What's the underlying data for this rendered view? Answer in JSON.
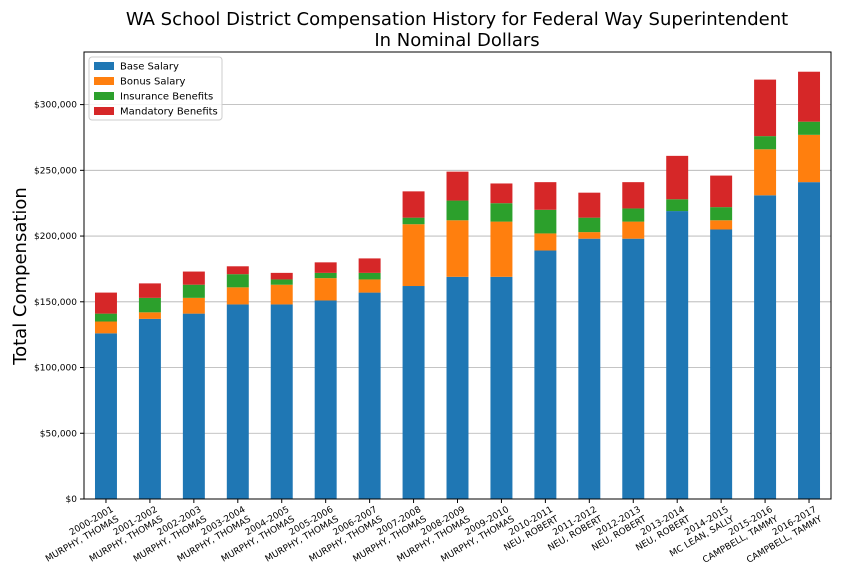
{
  "chart_data": {
    "type": "bar",
    "stacked": true,
    "title": "WA School District Compensation History for Federal Way Superintendent",
    "subtitle": "In Nominal Dollars",
    "xlabel": "",
    "ylabel": "Total Compensation",
    "ylim": [
      0,
      340000
    ],
    "yticks": [
      0,
      50000,
      100000,
      150000,
      200000,
      250000,
      300000
    ],
    "ytick_labels": [
      "$0",
      "$50,000",
      "$100,000",
      "$150,000",
      "$200,000",
      "$250,000",
      "$300,000"
    ],
    "grid": "horizontal",
    "legend_position": "top-left",
    "categories": [
      [
        "2000-2001",
        "MURPHY, THOMAS"
      ],
      [
        "2001-2002",
        "MURPHY, THOMAS"
      ],
      [
        "2002-2003",
        "MURPHY, THOMAS"
      ],
      [
        "2003-2004",
        "MURPHY, THOMAS"
      ],
      [
        "2004-2005",
        "MURPHY, THOMAS"
      ],
      [
        "2005-2006",
        "MURPHY, THOMAS"
      ],
      [
        "2006-2007",
        "MURPHY, THOMAS"
      ],
      [
        "2007-2008",
        "MURPHY, THOMAS"
      ],
      [
        "2008-2009",
        "MURPHY, THOMAS"
      ],
      [
        "2009-2010",
        "MURPHY, THOMAS"
      ],
      [
        "2010-2011",
        "NEU, ROBERT"
      ],
      [
        "2011-2012",
        "NEU, ROBERT"
      ],
      [
        "2012-2013",
        "NEU, ROBERT"
      ],
      [
        "2013-2014",
        "NEU, ROBERT"
      ],
      [
        "2014-2015",
        "MC LEAN, SALLY"
      ],
      [
        "2015-2016",
        "CAMPBELL, TAMMY"
      ],
      [
        "2016-2017",
        "CAMPBELL, TAMMY"
      ]
    ],
    "series": [
      {
        "name": "Base Salary",
        "color": "#1f77b4",
        "values": [
          126000,
          137000,
          141000,
          148000,
          148000,
          151000,
          157000,
          162000,
          169000,
          169000,
          189000,
          198000,
          198000,
          219000,
          205000,
          231000,
          241000
        ]
      },
      {
        "name": "Bonus Salary",
        "color": "#ff7f0e",
        "values": [
          9000,
          5000,
          12000,
          13000,
          15000,
          17000,
          10000,
          47000,
          43000,
          42000,
          13000,
          5000,
          13000,
          0,
          7000,
          35000,
          36000
        ]
      },
      {
        "name": "Insurance Benefits",
        "color": "#2ca02c",
        "values": [
          6000,
          11000,
          10000,
          10000,
          4000,
          4000,
          5000,
          5000,
          15000,
          14000,
          18000,
          11000,
          10000,
          9000,
          10000,
          10000,
          10000
        ]
      },
      {
        "name": "Mandatory Benefits",
        "color": "#d62728",
        "values": [
          16000,
          11000,
          10000,
          6000,
          5000,
          8000,
          11000,
          20000,
          22000,
          15000,
          21000,
          19000,
          20000,
          33000,
          24000,
          43000,
          38000
        ]
      }
    ]
  }
}
